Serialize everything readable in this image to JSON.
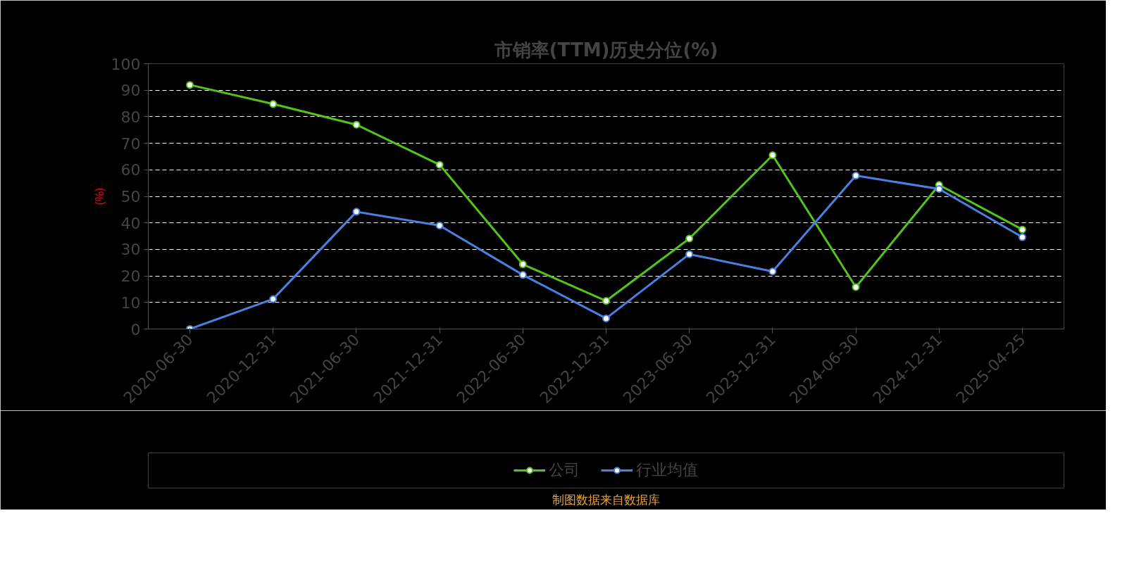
{
  "chart_data": {
    "type": "line",
    "title": "市销率(TTM)历史分位(%)",
    "ylabel": "(%)",
    "categories": [
      "2020-06-30",
      "2020-12-31",
      "2021-06-30",
      "2021-12-31",
      "2022-06-30",
      "2022-12-31",
      "2023-06-30",
      "2023-12-31",
      "2024-06-30",
      "2024-12-31",
      "2025-04-25"
    ],
    "series": [
      {
        "name": "公司",
        "color": "#52c41a",
        "values": [
          92.0,
          84.8,
          77.0,
          61.9,
          24.4,
          10.6,
          34.1,
          65.5,
          15.8,
          54.3,
          37.5
        ]
      },
      {
        "name": "行业均值",
        "color": "#4a80e0",
        "values": [
          0.0,
          11.3,
          44.2,
          39.0,
          20.4,
          4.0,
          28.2,
          21.7,
          57.8,
          52.8,
          34.6
        ]
      }
    ],
    "ylim": [
      0,
      100
    ],
    "yticks": [
      0,
      10,
      20,
      30,
      40,
      50,
      60,
      70,
      80,
      90,
      100
    ],
    "grid": "y",
    "legend": "bottom",
    "marker": "circle",
    "line_style": "solid",
    "annotations": [
      "制图数据来自数据库"
    ]
  }
}
